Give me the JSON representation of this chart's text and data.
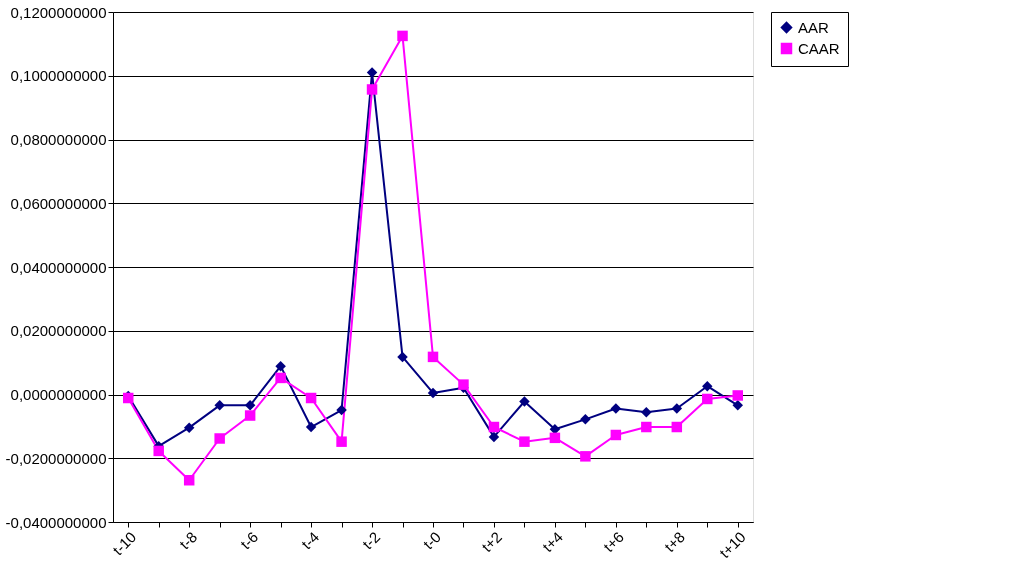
{
  "chart_data": {
    "type": "line",
    "categories": [
      "t-10",
      null,
      "t-8",
      null,
      "t-6",
      null,
      "t-4",
      null,
      "t-2",
      null,
      "t-0",
      null,
      "t+2",
      null,
      "t+4",
      null,
      "t+6",
      null,
      "t+8",
      null,
      "t+10"
    ],
    "series": [
      {
        "name": "AAR",
        "color": "#000080",
        "marker": "diamond",
        "values": [
          -0.0005,
          -0.0162,
          -0.0104,
          -0.0034,
          -0.0034,
          0.0089,
          -0.0102,
          -0.0049,
          0.101,
          0.0118,
          0.0005,
          0.0021,
          -0.0133,
          -0.0022,
          -0.0109,
          -0.0078,
          -0.0044,
          -0.0056,
          -0.0044,
          0.0026,
          -0.0034
        ]
      },
      {
        "name": "CAAR",
        "color": "#ff00ff",
        "marker": "square",
        "values": [
          -0.0011,
          -0.0177,
          -0.0269,
          -0.0138,
          -0.0066,
          0.0052,
          -0.0011,
          -0.0148,
          0.0957,
          0.1125,
          0.0118,
          0.0031,
          -0.0102,
          -0.0148,
          -0.0136,
          -0.0194,
          -0.0127,
          -0.0102,
          -0.0102,
          -0.0014,
          -0.0003
        ]
      }
    ],
    "ylim": [
      -0.04,
      0.12
    ],
    "yticks": [
      {
        "value": -0.04,
        "label": "-0,0400000000"
      },
      {
        "value": -0.02,
        "label": "-0,0200000000"
      },
      {
        "value": 0,
        "label": "0,0000000000"
      },
      {
        "value": 0.02,
        "label": "0,0200000000"
      },
      {
        "value": 0.04,
        "label": "0,0400000000"
      },
      {
        "value": 0.06,
        "label": "0,0600000000"
      },
      {
        "value": 0.08,
        "label": "0,0800000000"
      },
      {
        "value": 0.1,
        "label": "0,1000000000"
      },
      {
        "value": 0.12,
        "label": "0,1200000000"
      }
    ],
    "grid": "y",
    "legend": "right",
    "line_style": "solid"
  }
}
